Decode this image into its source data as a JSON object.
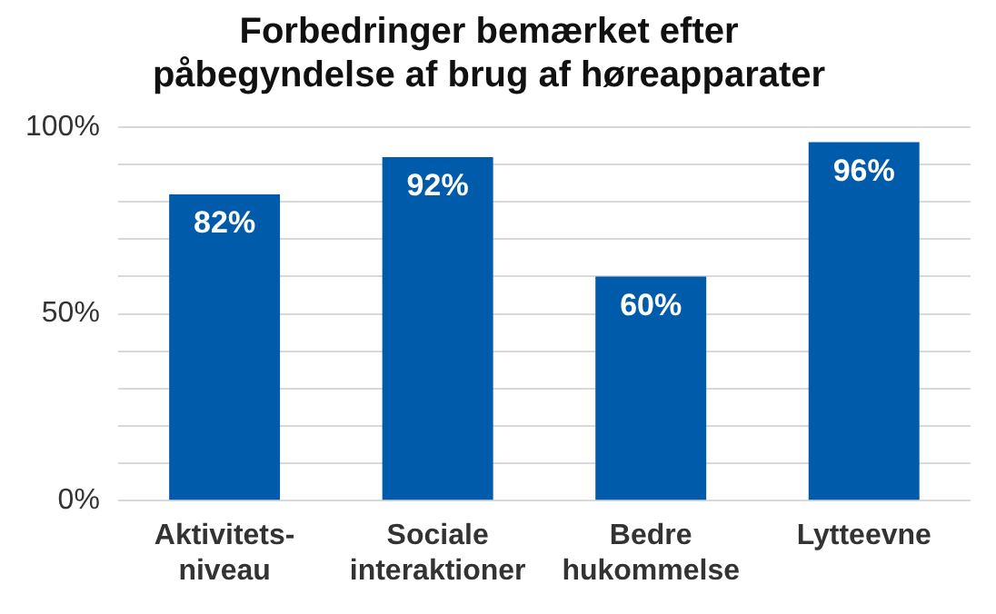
{
  "chart_data": {
    "type": "bar",
    "title": "Forbedringer bemærket efter\npåbegyndelse af brug af høreapparater",
    "categories": [
      "Aktivitets-\nniveau",
      "Sociale\ninteraktioner",
      "Bedre\nhukommelse",
      "Lytteevne"
    ],
    "values": [
      82,
      92,
      60,
      96
    ],
    "color": "#005baa",
    "ylim": [
      0,
      100
    ],
    "yticks": [
      {
        "value": 0,
        "label": "0%"
      },
      {
        "value": 10,
        "label": null
      },
      {
        "value": 20,
        "label": null
      },
      {
        "value": 30,
        "label": null
      },
      {
        "value": 40,
        "label": null
      },
      {
        "value": 50,
        "label": "50%"
      },
      {
        "value": 60,
        "label": null
      },
      {
        "value": 70,
        "label": null
      },
      {
        "value": 80,
        "label": null
      },
      {
        "value": 90,
        "label": null
      },
      {
        "value": 100,
        "label": "100%"
      }
    ],
    "grid": "y",
    "legend": false,
    "data_labels": true,
    "value_labels": [
      "82%",
      "92%",
      "60%",
      "96%"
    ]
  }
}
